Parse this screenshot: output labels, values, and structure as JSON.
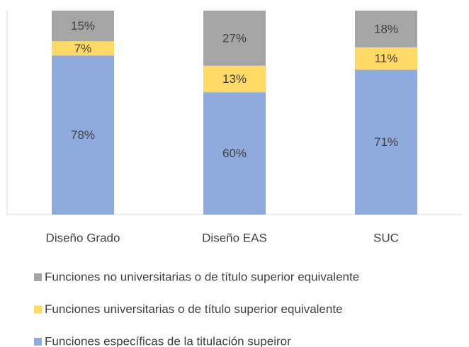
{
  "chart_data": {
    "type": "stacked_bar",
    "categories": [
      "Diseño Grado",
      "Diseño EAS",
      "SUC"
    ],
    "series": [
      {
        "name": "Funciones específicas de la titulación supeiror",
        "color": "#8faadc",
        "values": [
          78,
          60,
          71
        ],
        "value_labels": [
          "78%",
          "60%",
          "71%"
        ]
      },
      {
        "name": "Funciones universitarias o de título superior equivalente",
        "color": "#ffd966",
        "values": [
          7,
          13,
          11
        ],
        "value_labels": [
          "7%",
          "13%",
          "11%"
        ]
      },
      {
        "name": "Funciones no universitarias o de título superior equivalente",
        "color": "#a5a5a5",
        "values": [
          15,
          27,
          18
        ],
        "value_labels": [
          "15%",
          "27%",
          "18%"
        ]
      }
    ],
    "ylim": [
      0,
      100
    ]
  }
}
